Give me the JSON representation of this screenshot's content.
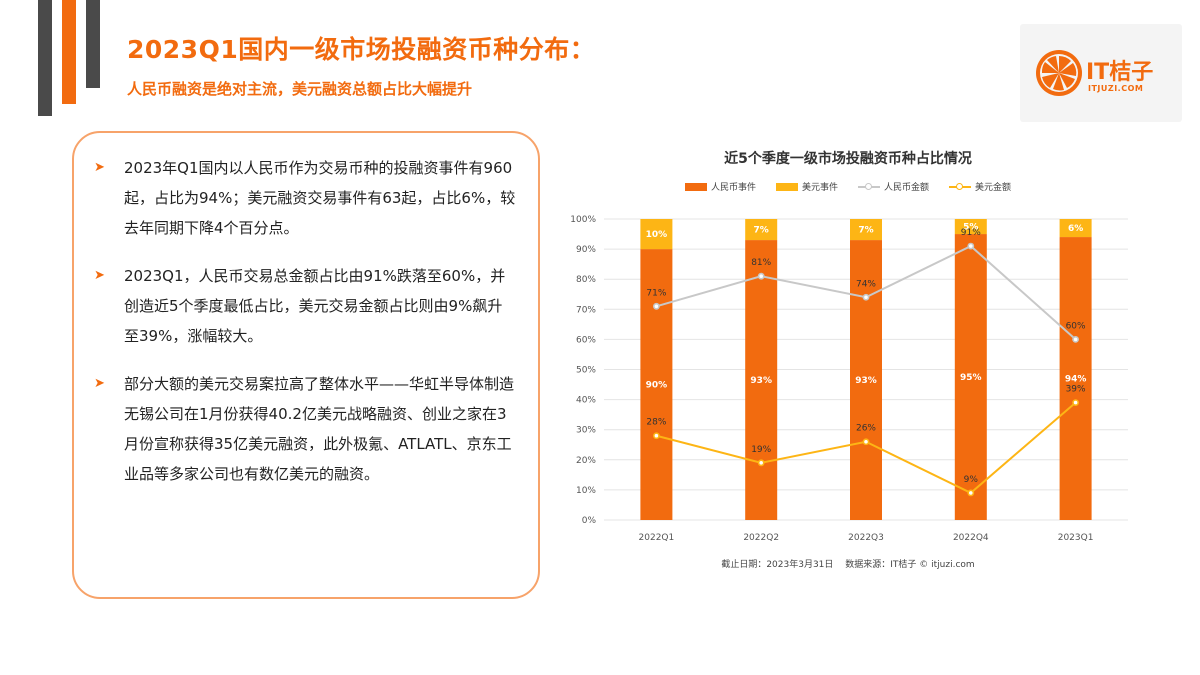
{
  "header": {
    "title": "2023Q1国内一级市场投融资币种分布：",
    "subtitle": "人民币融资是绝对主流，美元融资总额占比大幅提升"
  },
  "logo": {
    "word": "IT桔子",
    "url": "ITJUZI.COM"
  },
  "colors": {
    "brand": "#F26B0F",
    "rmb_bar": "#F26B0F",
    "usd_bar": "#FDB515",
    "rmb_line": "#C8C8C8",
    "usd_line": "#FDB515",
    "decor_gray": "#4A4A4A"
  },
  "bullets": [
    {
      "icon": "arrow-right-icon",
      "text": "2023年Q1国内以人民币作为交易币种的投融资事件有960起，占比为94%；美元融资交易事件有63起，占比6%，较去年同期下降4个百分点。"
    },
    {
      "icon": "arrow-right-icon",
      "text": "2023Q1，人民币交易总金额占比由91%跌落至60%，并创造近5个季度最低占比，美元交易金额占比则由9%飙升至39%，涨幅较大。"
    },
    {
      "icon": "arrow-right-icon",
      "text": "部分大额的美元交易案拉高了整体水平——华虹半导体制造无锡公司在1月份获得40.2亿美元战略融资、创业之家在3月份宣称获得35亿美元融资，此外极氪、ATLATL、京东工业品等多家公司也有数亿美元的融资。"
    }
  ],
  "chart_data": {
    "type": "bar",
    "title": "近5个季度一级市场投融资币种占比情况",
    "categories": [
      "2022Q1",
      "2022Q2",
      "2022Q3",
      "2022Q4",
      "2023Q1"
    ],
    "stacked": true,
    "series": [
      {
        "name": "人民币事件",
        "kind": "bar",
        "values": [
          90,
          93,
          93,
          95,
          94
        ]
      },
      {
        "name": "美元事件",
        "kind": "bar",
        "values": [
          10,
          7,
          7,
          5,
          6
        ]
      },
      {
        "name": "人民币金额",
        "kind": "line",
        "values": [
          71,
          81,
          74,
          91,
          60
        ]
      },
      {
        "name": "美元金额",
        "kind": "line",
        "values": [
          28,
          19,
          26,
          9,
          39
        ]
      }
    ],
    "ylim": [
      0,
      100
    ],
    "yticks": [
      "0%",
      "10%",
      "20%",
      "30%",
      "40%",
      "50%",
      "60%",
      "70%",
      "80%",
      "90%",
      "100%"
    ],
    "grid": true,
    "legend_position": "top",
    "footer": "截止日期：2023年3月31日　 数据来源：IT桔子 © itjuzi.com"
  }
}
